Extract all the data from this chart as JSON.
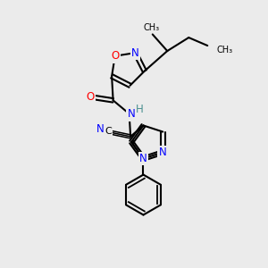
{
  "bg_color": "#ebebeb",
  "atom_colors": {
    "N": "#0000ff",
    "O": "#ff0000",
    "C": "#000000",
    "H": "#4a9090"
  },
  "bond_color": "#000000"
}
